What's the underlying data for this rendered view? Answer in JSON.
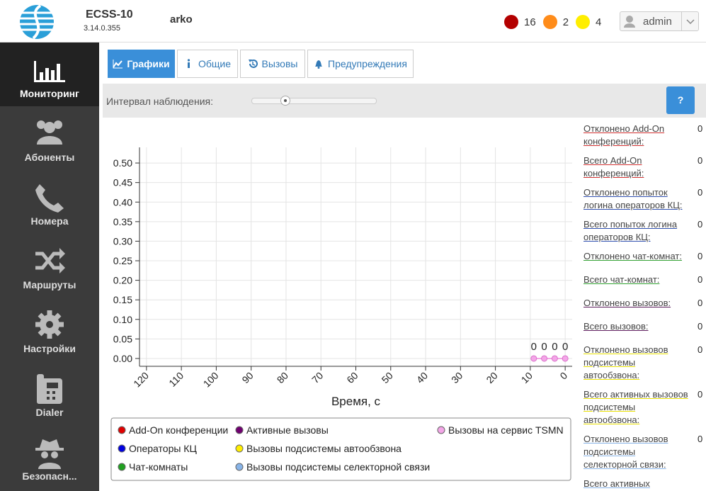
{
  "header": {
    "app_name": "ECSS-10",
    "version": "3.14.0.355",
    "node": "arko",
    "alarms": [
      {
        "count": 16,
        "color": "#b30000"
      },
      {
        "count": 2,
        "color": "#ff8c1a"
      },
      {
        "count": 4,
        "color": "#ffee00"
      }
    ],
    "user": "admin"
  },
  "sidebar": {
    "items": [
      "Мониторинг",
      "Абоненты",
      "Номера",
      "Маршруты",
      "Настройки",
      "Dialer",
      "Безопасн..."
    ]
  },
  "tabs": [
    "Графики",
    "Общие",
    "Вызовы",
    "Предупреждения"
  ],
  "toolbar": {
    "interval_label": "Интервал наблюдения:",
    "help": "?"
  },
  "chart_data": {
    "type": "line",
    "x_label": "Время, с",
    "xlim": [
      122,
      -2
    ],
    "xticks": [
      120,
      110,
      100,
      90,
      80,
      70,
      60,
      50,
      40,
      30,
      20,
      10,
      0
    ],
    "ylim": [
      -0.02,
      0.54
    ],
    "yticks": [
      {
        "value": 0,
        "label": "0.00"
      },
      {
        "value": 0.05,
        "label": "0.05"
      },
      {
        "value": 0.1,
        "label": "0.10"
      },
      {
        "value": 0.15,
        "label": "0.15"
      },
      {
        "value": 0.2,
        "label": "0.20"
      },
      {
        "value": 0.25,
        "label": "0.25"
      },
      {
        "value": 0.3,
        "label": "0.30"
      },
      {
        "value": 0.35,
        "label": "0.35"
      },
      {
        "value": 0.4,
        "label": "0.40"
      },
      {
        "value": 0.45,
        "label": "0.45"
      },
      {
        "value": 0.5,
        "label": "0.50"
      }
    ],
    "grid": true,
    "x": [
      9,
      6,
      3,
      0
    ],
    "series": [
      {
        "name": "Add-On конференции",
        "color": "#e00000",
        "values": [
          null,
          null,
          null,
          null
        ]
      },
      {
        "name": "Операторы КЦ",
        "color": "#0000e0",
        "values": [
          null,
          null,
          null,
          null
        ]
      },
      {
        "name": "Чат-комнаты",
        "color": "#20a020",
        "values": [
          null,
          null,
          null,
          null
        ]
      },
      {
        "name": "Активные вызовы",
        "color": "#700070",
        "values": [
          null,
          null,
          null,
          null
        ]
      },
      {
        "name": "Вызовы подсистемы автообзвона",
        "color": "#ffee00",
        "values": [
          null,
          null,
          null,
          null
        ]
      },
      {
        "name": "Вызовы подсистемы селекторной связи",
        "color": "#88b4e8",
        "values": [
          null,
          null,
          null,
          null
        ]
      },
      {
        "name": "Вызовы на сервис TSMN",
        "color": "#f4a6e8",
        "values": [
          0,
          0,
          0,
          0
        ]
      }
    ]
  },
  "stats": [
    {
      "label": "Отклонено Add-On конференций:",
      "value": 0,
      "color": "#d03030"
    },
    {
      "label": "Всего Add-On конференций:",
      "value": 0,
      "color": "#d03030"
    },
    {
      "label": "Отклонено попыток логина операторов КЦ:",
      "value": 0,
      "color": "#3050b0"
    },
    {
      "label": "Всего попыток логина операторов КЦ:",
      "value": 0,
      "color": "#3050b0"
    },
    {
      "label": "Отклонено чат-комнат:",
      "value": 0,
      "color": "#30a030"
    },
    {
      "label": "Всего чат-комнат:",
      "value": 0,
      "color": "#30a030"
    },
    {
      "label": "Отклонено вызовов:",
      "value": 0,
      "color": "#602060"
    },
    {
      "label": "Всего вызовов:",
      "value": 0,
      "color": "#602060"
    },
    {
      "label": "Отклонено вызовов подсистемы автообзвона:",
      "value": 0,
      "color": "#e8e000"
    },
    {
      "label": "Всего активных вызовов подсистемы автообзвона:",
      "value": 0,
      "color": "#e8e000"
    },
    {
      "label": "Отклонено вызовов подсистемы селекторной связи:",
      "value": 0,
      "color": "#88b4e8"
    },
    {
      "label": "Всего активных",
      "value": null,
      "color": "#88b4e8"
    }
  ]
}
